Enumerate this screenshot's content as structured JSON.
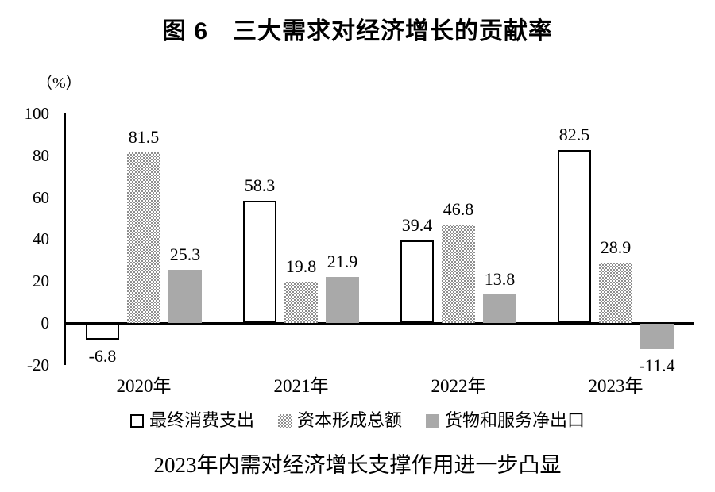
{
  "title": "图 6　三大需求对经济增长的贡献率",
  "unit_label": "（%）",
  "caption": "2023年内需对经济增长支撑作用进一步凸显",
  "chart_data": {
    "type": "bar",
    "title": "图 6　三大需求对经济增长的贡献率",
    "categories": [
      "2020年",
      "2021年",
      "2022年",
      "2023年"
    ],
    "series": [
      {
        "name": "最终消费支出",
        "style": "outline",
        "values": [
          -6.8,
          58.3,
          39.4,
          82.5
        ]
      },
      {
        "name": "资本形成总额",
        "style": "dotted",
        "values": [
          81.5,
          19.8,
          46.8,
          28.9
        ]
      },
      {
        "name": "货物和服务净出口",
        "style": "gray",
        "values": [
          25.3,
          21.9,
          13.8,
          -11.4
        ]
      }
    ],
    "xlabel": "",
    "ylabel": "（%）",
    "ylim": [
      -20,
      100
    ],
    "yticks": [
      100,
      80,
      60,
      40,
      20,
      0,
      -20
    ],
    "grid": false,
    "legend_position": "bottom",
    "colors": {
      "axis": "#000000",
      "outline_bar_border": "#000000",
      "outline_bar_fill": "#ffffff",
      "dotted_pattern": "#8e8e8e",
      "gray_bar_fill": "#a9a9a9",
      "text": "#000000"
    },
    "caption": "2023年内需对经济增长支撑作用进一步凸显"
  }
}
